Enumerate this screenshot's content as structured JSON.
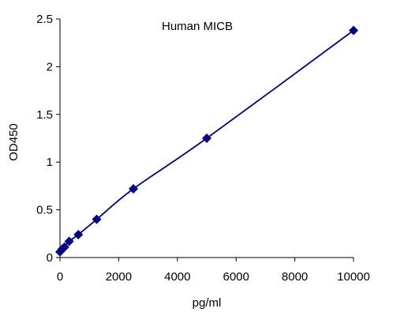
{
  "chart_data": {
    "type": "scatter",
    "title": "Human  MICB",
    "xlabel": "pg/ml",
    "ylabel": "OD450",
    "xlim": [
      0,
      10000
    ],
    "ylim": [
      0,
      2.5
    ],
    "x_ticks": [
      "0",
      "2000",
      "4000",
      "6000",
      "8000",
      "10000"
    ],
    "y_ticks": [
      "0",
      "0.5",
      "1",
      "1.5",
      "2",
      "2.5"
    ],
    "grid": false,
    "legend": "none",
    "series": [
      {
        "x": [
          0,
          78,
          156,
          312,
          625,
          1250,
          2500,
          5000,
          10000
        ],
        "y": [
          0.06,
          0.09,
          0.11,
          0.17,
          0.24,
          0.4,
          0.72,
          1.25,
          2.38
        ],
        "color": "#000080",
        "marker": "diamond",
        "line": "smooth"
      }
    ]
  }
}
